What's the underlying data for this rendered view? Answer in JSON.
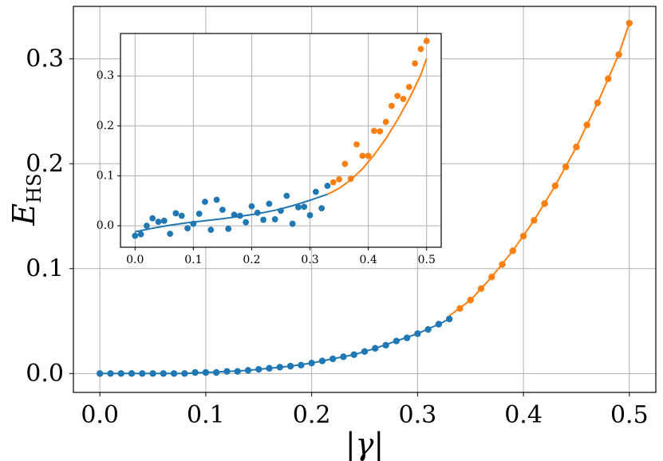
{
  "chart_data": [
    {
      "type": "line+scatter",
      "xlabel": "|γ|",
      "ylabel": "E",
      "ylabel_sub": "HS",
      "xlim": [
        -0.025,
        0.525
      ],
      "ylim": [
        -0.018,
        0.35
      ],
      "xticks": [
        0.0,
        0.1,
        0.2,
        0.3,
        0.4,
        0.5
      ],
      "xtick_labels": [
        "0.0",
        "0.1",
        "0.2",
        "0.3",
        "0.4",
        "0.5"
      ],
      "yticks": [
        0.0,
        0.1,
        0.2,
        0.3
      ],
      "ytick_labels": [
        "0.0",
        "0.1",
        "0.2",
        "0.3"
      ],
      "grid": true,
      "colors": {
        "blue": "#1f77b4",
        "orange": "#ff7f0e"
      },
      "series": [
        {
          "color": "blue",
          "kind": "scatter",
          "x": [
            0.0,
            0.01,
            0.02,
            0.03,
            0.04,
            0.05,
            0.06,
            0.07,
            0.08,
            0.09,
            0.1,
            0.11,
            0.12,
            0.13,
            0.14,
            0.15,
            0.16,
            0.17,
            0.18,
            0.19,
            0.2,
            0.21,
            0.22,
            0.23,
            0.24,
            0.25,
            0.26,
            0.27,
            0.28,
            0.29,
            0.3,
            0.31,
            0.32,
            0.33
          ],
          "y": [
            0.0,
            0.0,
            0.0,
            0.0,
            0.0,
            0.0,
            0.0,
            0.0,
            0.0,
            0.001,
            0.001,
            0.001,
            0.002,
            0.002,
            0.003,
            0.004,
            0.005,
            0.006,
            0.007,
            0.008,
            0.01,
            0.012,
            0.014,
            0.016,
            0.018,
            0.021,
            0.024,
            0.027,
            0.031,
            0.034,
            0.038,
            0.042,
            0.047,
            0.052
          ]
        },
        {
          "color": "orange",
          "kind": "scatter",
          "x": [
            0.34,
            0.35,
            0.36,
            0.37,
            0.38,
            0.39,
            0.4,
            0.41,
            0.42,
            0.43,
            0.44,
            0.45,
            0.46,
            0.47,
            0.48,
            0.49,
            0.5
          ],
          "y": [
            0.062,
            0.07,
            0.081,
            0.092,
            0.104,
            0.117,
            0.131,
            0.146,
            0.162,
            0.179,
            0.197,
            0.216,
            0.237,
            0.258,
            0.281,
            0.304,
            0.334
          ]
        },
        {
          "color": "blue",
          "kind": "line",
          "x": [
            0.0,
            0.02,
            0.04,
            0.06,
            0.08,
            0.1,
            0.12,
            0.14,
            0.16,
            0.18,
            0.2,
            0.22,
            0.24,
            0.26,
            0.28,
            0.3,
            0.32,
            0.33
          ],
          "y": [
            0.0,
            0.0,
            0.0,
            0.0,
            0.0,
            0.001,
            0.002,
            0.003,
            0.005,
            0.007,
            0.01,
            0.014,
            0.018,
            0.024,
            0.031,
            0.038,
            0.047,
            0.052
          ]
        },
        {
          "color": "orange",
          "kind": "line",
          "x": [
            0.33,
            0.35,
            0.37,
            0.39,
            0.41,
            0.43,
            0.45,
            0.47,
            0.49,
            0.5
          ],
          "y": [
            0.055,
            0.07,
            0.092,
            0.117,
            0.146,
            0.179,
            0.216,
            0.258,
            0.304,
            0.334
          ]
        }
      ]
    },
    {
      "type": "line+scatter",
      "xlim": [
        -0.025,
        0.525
      ],
      "ylim": [
        -0.043,
        0.385
      ],
      "xticks": [
        0.0,
        0.1,
        0.2,
        0.3,
        0.4,
        0.5
      ],
      "xtick_labels": [
        "0.0",
        "0.1",
        "0.2",
        "0.3",
        "0.4",
        "0.5"
      ],
      "yticks": [
        0.0,
        0.1,
        0.2,
        0.3
      ],
      "ytick_labels": [
        "0.0",
        "0.1",
        "0.2",
        "0.3"
      ],
      "grid": true,
      "colors": {
        "blue": "#1f77b4",
        "orange": "#ff7f0e"
      },
      "series": [
        {
          "color": "blue",
          "kind": "scatter",
          "x": [
            0.0,
            0.01,
            0.02,
            0.03,
            0.04,
            0.05,
            0.06,
            0.07,
            0.08,
            0.09,
            0.1,
            0.11,
            0.12,
            0.13,
            0.14,
            0.15,
            0.16,
            0.17,
            0.18,
            0.19,
            0.2,
            0.21,
            0.22,
            0.23,
            0.24,
            0.25,
            0.26,
            0.27,
            0.28,
            0.29,
            0.3,
            0.31,
            0.32,
            0.33
          ],
          "y": [
            -0.02,
            -0.017,
            0.0,
            0.015,
            0.008,
            0.01,
            -0.016,
            0.025,
            0.02,
            -0.005,
            0.004,
            0.024,
            0.048,
            -0.008,
            0.052,
            0.032,
            -0.006,
            0.022,
            0.02,
            0.007,
            0.039,
            0.026,
            0.012,
            0.044,
            0.013,
            0.03,
            0.06,
            0.004,
            0.037,
            0.038,
            0.021,
            0.068,
            0.035,
            0.08
          ]
        },
        {
          "color": "orange",
          "kind": "scatter",
          "x": [
            0.34,
            0.35,
            0.36,
            0.37,
            0.38,
            0.39,
            0.4,
            0.41,
            0.42,
            0.43,
            0.44,
            0.45,
            0.46,
            0.47,
            0.48,
            0.49,
            0.5
          ],
          "y": [
            0.087,
            0.093,
            0.124,
            0.094,
            0.163,
            0.14,
            0.14,
            0.19,
            0.189,
            0.208,
            0.24,
            0.26,
            0.254,
            0.278,
            0.325,
            0.354,
            0.37
          ]
        },
        {
          "color": "blue",
          "kind": "line",
          "x": [
            0.0,
            0.03,
            0.06,
            0.09,
            0.12,
            0.15,
            0.18,
            0.21,
            0.24,
            0.27,
            0.3,
            0.33
          ],
          "y": [
            -0.012,
            -0.005,
            0.001,
            0.006,
            0.01,
            0.014,
            0.019,
            0.024,
            0.031,
            0.04,
            0.051,
            0.063
          ]
        },
        {
          "color": "orange",
          "kind": "line",
          "x": [
            0.33,
            0.35,
            0.37,
            0.39,
            0.41,
            0.43,
            0.45,
            0.47,
            0.49,
            0.5
          ],
          "y": [
            0.063,
            0.075,
            0.092,
            0.114,
            0.142,
            0.174,
            0.212,
            0.254,
            0.302,
            0.335
          ]
        }
      ]
    }
  ]
}
